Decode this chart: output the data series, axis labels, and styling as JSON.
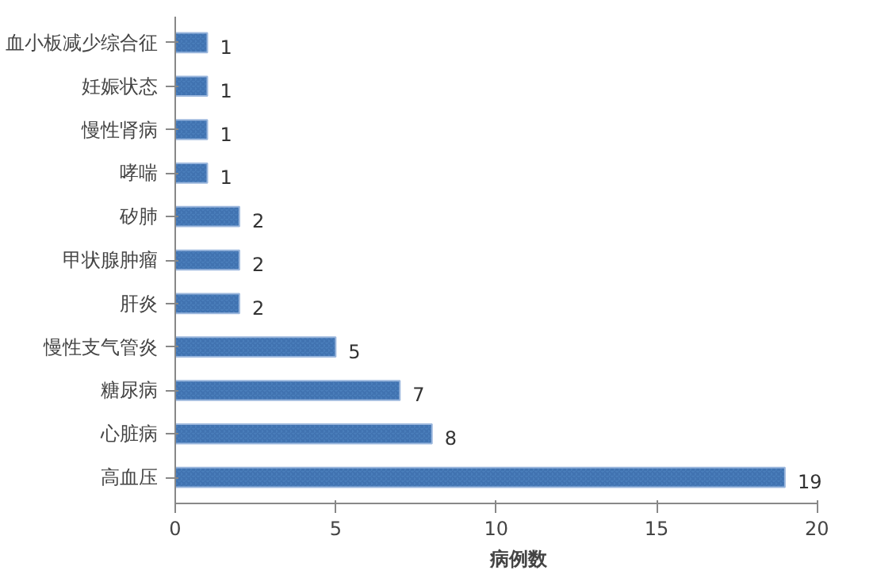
{
  "chart_data": {
    "type": "bar",
    "orientation": "horizontal",
    "xlabel": "病例数",
    "categories": [
      "血小板减少综合征",
      "妊娠状态",
      "慢性肾病",
      "哮喘",
      "矽肺",
      "甲状腺肿瘤",
      "肝炎",
      "慢性支气管炎",
      "糖尿病",
      "心脏病",
      "高血压"
    ],
    "values": [
      1,
      1,
      1,
      1,
      2,
      2,
      2,
      5,
      7,
      8,
      19
    ],
    "color": "#4a7ebb",
    "xlim": [
      0,
      20
    ],
    "xticks": [
      0,
      5,
      10,
      15,
      20
    ],
    "data_labels": true,
    "grid": false
  }
}
